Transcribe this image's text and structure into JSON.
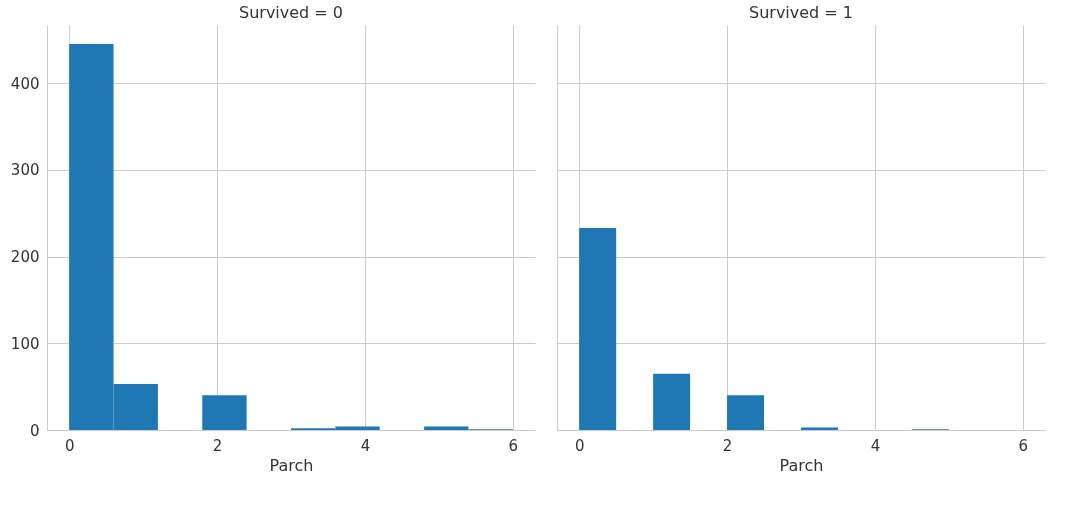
{
  "chart_data": [
    {
      "type": "histogram",
      "title": "Survived = 0",
      "xlabel": "Parch",
      "bins": [
        0,
        0.6,
        1.2,
        1.8,
        2.4,
        3.0,
        3.6,
        4.2,
        4.8,
        5.4,
        6.0
      ],
      "values": [
        445,
        53,
        0,
        40,
        0,
        2,
        4,
        0,
        4,
        1
      ],
      "color": "#1f77b4",
      "xlim": [
        -0.3,
        6.3
      ],
      "xticks": [
        0,
        2,
        4,
        6
      ],
      "ylim": [
        0,
        467
      ],
      "yticks": [
        0,
        100,
        200,
        300,
        400
      ],
      "grid": true
    },
    {
      "type": "histogram",
      "title": "Survived = 1",
      "xlabel": "Parch",
      "bins": [
        0,
        0.5,
        1,
        1.5,
        2,
        2.5,
        3,
        3.5,
        4,
        4.5,
        5
      ],
      "values": [
        233,
        0,
        65,
        0,
        40,
        0,
        3,
        0,
        0,
        1
      ],
      "color": "#1f77b4",
      "xlim": [
        -0.3,
        6.3
      ],
      "xticks": [
        0,
        2,
        4,
        6
      ],
      "ylim": [
        0,
        467
      ],
      "yticks": [
        0,
        100,
        200,
        300,
        400
      ],
      "grid": true,
      "tick_labels": "x"
    }
  ]
}
